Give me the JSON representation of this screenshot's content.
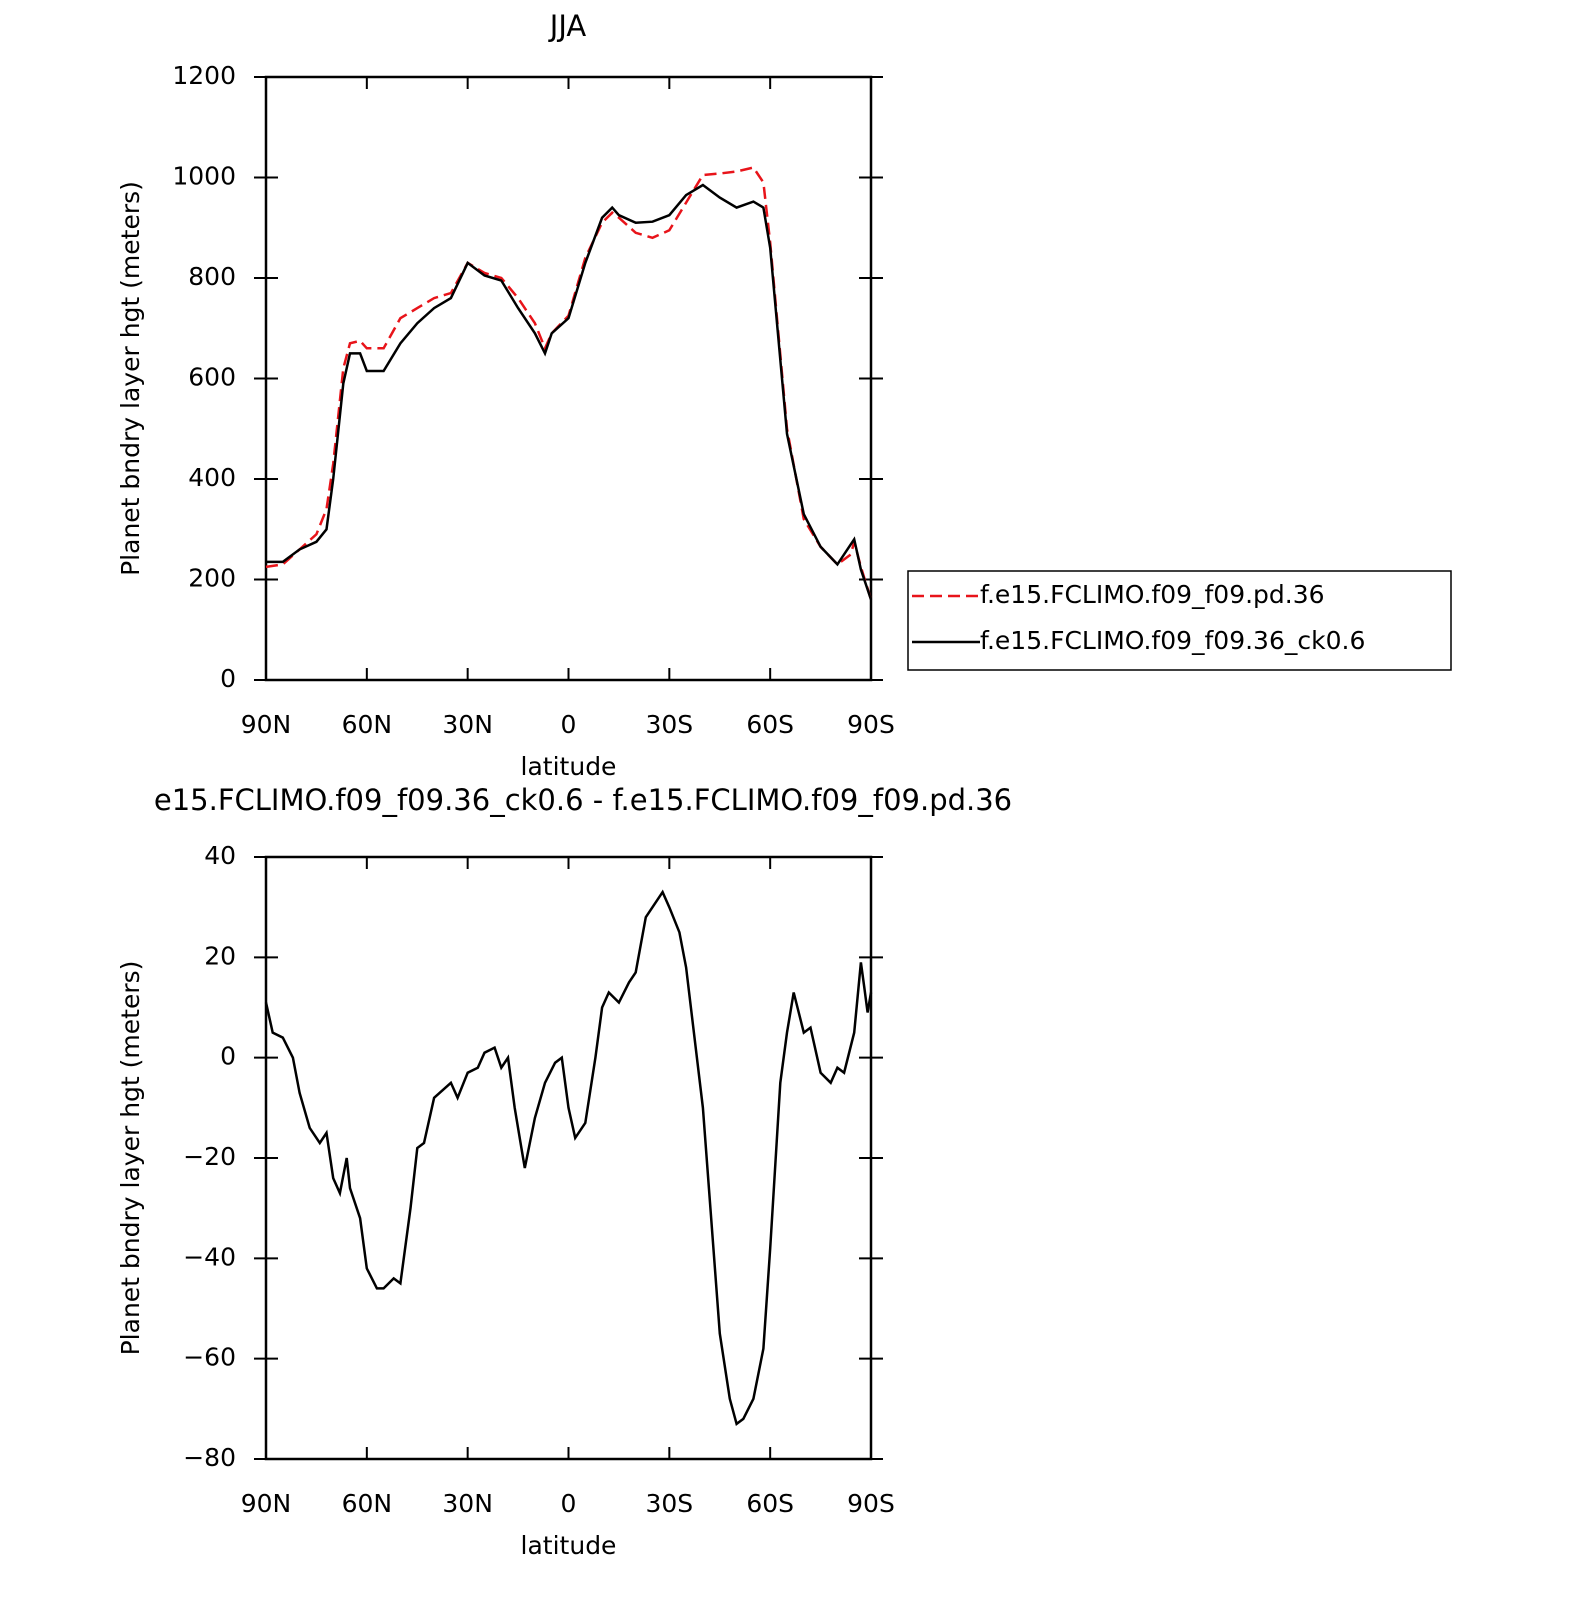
{
  "chart_data": [
    {
      "type": "line",
      "title": "JJA",
      "xlabel": "latitude",
      "ylabel": "Planet bndry layer hgt (meters)",
      "x": [
        90,
        85,
        80,
        75,
        72,
        70,
        67,
        65,
        62,
        60,
        55,
        50,
        45,
        40,
        35,
        30,
        25,
        20,
        15,
        10,
        7,
        5,
        0,
        -5,
        -10,
        -13,
        -15,
        -20,
        -25,
        -30,
        -35,
        -40,
        -45,
        -50,
        -55,
        -58,
        -60,
        -65,
        -70,
        -75,
        -80,
        -84,
        -85,
        -87,
        -90
      ],
      "series": [
        {
          "name": "f.e15.FCLIMO.f09_f09.pd.36",
          "color": "#e8141a",
          "line_style": "dashed",
          "values": [
            225,
            230,
            260,
            290,
            340,
            430,
            620,
            670,
            675,
            660,
            660,
            720,
            740,
            760,
            770,
            830,
            810,
            800,
            760,
            710,
            660,
            690,
            725,
            840,
            910,
            930,
            920,
            890,
            880,
            895,
            950,
            1005,
            1008,
            1012,
            1020,
            990,
            870,
            500,
            320,
            265,
            230,
            250,
            275,
            225,
            160
          ]
        },
        {
          "name": "f.e15.FCLIMO.f09_f09.36_ck0.6",
          "color": "#000000",
          "line_style": "solid",
          "values": [
            235,
            235,
            260,
            275,
            300,
            400,
            590,
            650,
            650,
            615,
            615,
            670,
            710,
            740,
            760,
            830,
            805,
            795,
            740,
            690,
            650,
            690,
            720,
            830,
            920,
            940,
            925,
            910,
            912,
            925,
            965,
            985,
            960,
            940,
            952,
            940,
            860,
            490,
            330,
            265,
            230,
            270,
            280,
            220,
            160
          ]
        }
      ],
      "xlim": [
        90,
        -90
      ],
      "xticks": [
        {
          "value": 90,
          "label": "90N"
        },
        {
          "value": 60,
          "label": "60N"
        },
        {
          "value": 30,
          "label": "30N"
        },
        0,
        {
          "value": -30,
          "label": "30S"
        },
        {
          "value": -60,
          "label": "60S"
        },
        {
          "value": -90,
          "label": "90S"
        }
      ],
      "ylim": [
        0,
        1200
      ],
      "yticks": [
        0,
        200,
        400,
        600,
        800,
        1000,
        1200
      ],
      "legend": "right"
    },
    {
      "type": "line",
      "title": "e15.FCLIMO.f09_f09.36_ck0.6 - f.e15.FCLIMO.f09_f09.pd.36",
      "xlabel": "latitude",
      "ylabel": "Planet bndry layer hgt (meters)",
      "x": [
        90,
        88,
        85,
        82,
        80,
        77,
        74,
        72,
        70,
        68,
        66,
        65,
        62,
        60,
        57,
        55,
        52,
        50,
        47,
        45,
        43,
        40,
        35,
        33,
        30,
        27,
        25,
        22,
        20,
        18,
        16,
        14,
        13,
        10,
        7,
        4,
        2,
        0,
        -2,
        -5,
        -8,
        -10,
        -12,
        -15,
        -18,
        -20,
        -23,
        -25,
        -28,
        -30,
        -33,
        -35,
        -40,
        -45,
        -48,
        -50,
        -52,
        -55,
        -58,
        -60,
        -63,
        -65,
        -67,
        -70,
        -72,
        -75,
        -78,
        -80,
        -82,
        -85,
        -87,
        -88,
        -89,
        -90
      ],
      "series": [
        {
          "color": "#000000",
          "line_style": "solid",
          "values": [
            11,
            5,
            4,
            0,
            -7,
            -14,
            -17,
            -15,
            -24,
            -27,
            -20,
            -26,
            -32,
            -42,
            -46,
            -46,
            -44,
            -45,
            -30,
            -18,
            -17,
            -8,
            -5,
            -8,
            -3,
            -2,
            1,
            2,
            -2,
            0,
            -10,
            -18,
            -22,
            -12,
            -5,
            -1,
            0,
            -10,
            -16,
            -13,
            0,
            10,
            13,
            11,
            15,
            17,
            28,
            30,
            33,
            30,
            25,
            18,
            -10,
            -55,
            -68,
            -73,
            -72,
            -68,
            -58,
            -38,
            -5,
            5,
            13,
            5,
            6,
            -3,
            -5,
            -2,
            -3,
            5,
            19,
            14,
            9,
            13
          ]
        }
      ],
      "xlim": [
        90,
        -90
      ],
      "xticks": [
        {
          "value": 90,
          "label": "90N"
        },
        {
          "value": 60,
          "label": "60N"
        },
        {
          "value": 30,
          "label": "30N"
        },
        0,
        {
          "value": -30,
          "label": "30S"
        },
        {
          "value": -60,
          "label": "60S"
        },
        {
          "value": -90,
          "label": "90S"
        }
      ],
      "ylim": [
        -80,
        40
      ],
      "yticks": [
        {
          "value": -80,
          "label": "−80"
        },
        {
          "value": -60,
          "label": "−60"
        },
        {
          "value": -40,
          "label": "−40"
        },
        {
          "value": -20,
          "label": "−20"
        },
        0,
        20,
        40
      ]
    }
  ]
}
